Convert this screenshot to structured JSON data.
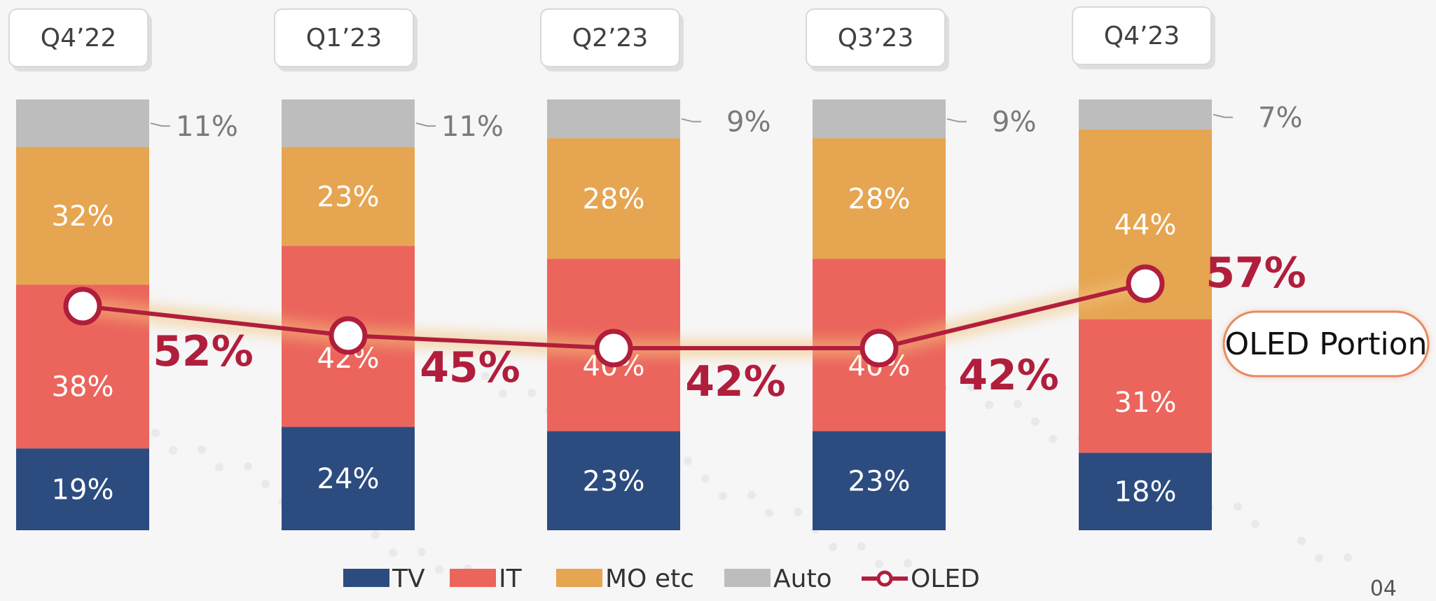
{
  "chart_data": {
    "type": "bar",
    "stacked": true,
    "categories": [
      "Q4’22",
      "Q1’23",
      "Q2’23",
      "Q3’23",
      "Q4’23"
    ],
    "series": [
      {
        "name": "TV",
        "values": [
          19,
          24,
          23,
          23,
          18
        ],
        "labels": [
          "19%",
          "24%",
          "23%",
          "23%",
          "18%"
        ],
        "color": "#2c4c80"
      },
      {
        "name": "IT",
        "values": [
          38,
          42,
          40,
          40,
          31
        ],
        "labels": [
          "38%",
          "42%",
          "40%",
          "40%",
          "31%"
        ],
        "color": "#eb655d"
      },
      {
        "name": "MO etc",
        "values": [
          32,
          23,
          28,
          28,
          44
        ],
        "labels": [
          "32%",
          "23%",
          "28%",
          "28%",
          "44%"
        ],
        "color": "#e6a551"
      },
      {
        "name": "Auto",
        "values": [
          11,
          11,
          9,
          9,
          7
        ],
        "labels": [
          "11%",
          "11%",
          "9%",
          "9%",
          "7%"
        ],
        "color": "#bdbdbd"
      }
    ],
    "line": {
      "name": "OLED",
      "values": [
        52,
        45,
        42,
        42,
        57
      ],
      "labels": [
        "52%",
        "45%",
        "42%",
        "42%",
        "57%"
      ],
      "color": "#b11e3c"
    },
    "annotation": "OLED Portion",
    "legend_position": "bottom-center",
    "ylim": [
      0,
      100
    ],
    "grid": false
  },
  "page_number": "04"
}
